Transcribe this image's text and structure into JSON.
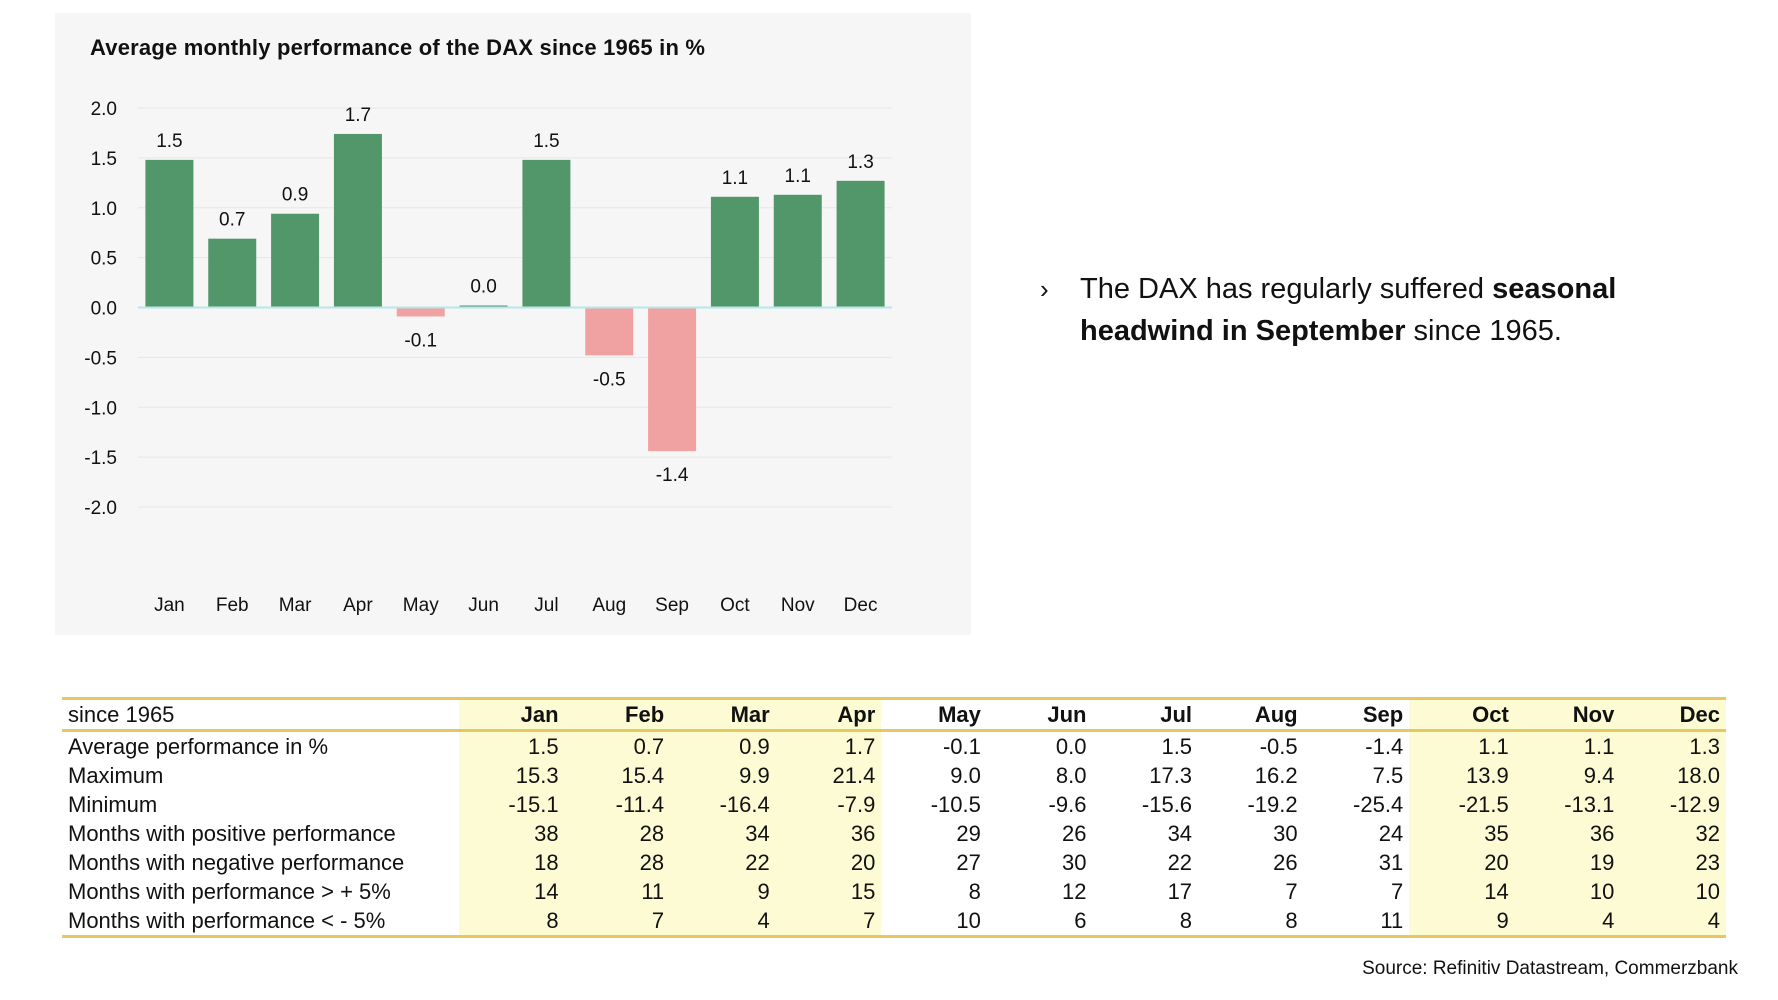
{
  "chart_data": {
    "type": "bar",
    "title": "Average monthly performance of the DAX since 1965 in %",
    "categories": [
      "Jan",
      "Feb",
      "Mar",
      "Apr",
      "May",
      "Jun",
      "Jul",
      "Aug",
      "Sep",
      "Oct",
      "Nov",
      "Dec"
    ],
    "values": [
      1.48,
      0.69,
      0.94,
      1.74,
      -0.09,
      0.02,
      1.48,
      -0.48,
      -1.44,
      1.11,
      1.13,
      1.27
    ],
    "data_labels": [
      "1.5",
      "0.7",
      "0.9",
      "1.7",
      "-0.1",
      "0.0",
      "1.5",
      "-0.5",
      "-1.4",
      "1.1",
      "1.1",
      "1.3"
    ],
    "yticks": [
      "2.0",
      "1.5",
      "1.0",
      "0.5",
      "0.0",
      "-0.5",
      "-1.0",
      "-1.5",
      "-2.0"
    ],
    "ylim": [
      -2.0,
      2.0
    ],
    "grid": true,
    "colors": {
      "positive": "#52976a",
      "negative": "#f0a1a1",
      "zero_line": "#b8e6ec",
      "grid": "#e6e6e6"
    }
  },
  "bullet": {
    "marker": "›",
    "text_before": "The DAX has regularly suffered ",
    "text_bold": "seasonal headwind in September",
    "text_after": " since 1965."
  },
  "table": {
    "header": "since 1965",
    "months": [
      "Jan",
      "Feb",
      "Mar",
      "Apr",
      "May",
      "Jun",
      "Jul",
      "Aug",
      "Sep",
      "Oct",
      "Nov",
      "Dec"
    ],
    "highlight_months": [
      "Jan",
      "Feb",
      "Mar",
      "Apr",
      "Oct",
      "Nov",
      "Dec"
    ],
    "rows": [
      {
        "label": "Average performance in %",
        "values": [
          "1.5",
          "0.7",
          "0.9",
          "1.7",
          "-0.1",
          "0.0",
          "1.5",
          "-0.5",
          "-1.4",
          "1.1",
          "1.1",
          "1.3"
        ]
      },
      {
        "label": "Maximum",
        "values": [
          "15.3",
          "15.4",
          "9.9",
          "21.4",
          "9.0",
          "8.0",
          "17.3",
          "16.2",
          "7.5",
          "13.9",
          "9.4",
          "18.0"
        ]
      },
      {
        "label": "Minimum",
        "values": [
          "-15.1",
          "-11.4",
          "-16.4",
          "-7.9",
          "-10.5",
          "-9.6",
          "-15.6",
          "-19.2",
          "-25.4",
          "-21.5",
          "-13.1",
          "-12.9"
        ]
      },
      {
        "label": "Months with positive performance",
        "values": [
          "38",
          "28",
          "34",
          "36",
          "29",
          "26",
          "34",
          "30",
          "24",
          "35",
          "36",
          "32"
        ]
      },
      {
        "label": "Months with negative performance",
        "values": [
          "18",
          "28",
          "22",
          "20",
          "27",
          "30",
          "22",
          "26",
          "31",
          "20",
          "19",
          "23"
        ]
      },
      {
        "label": "Months with performance > + 5%",
        "values": [
          "14",
          "11",
          "9",
          "15",
          "8",
          "12",
          "17",
          "7",
          "7",
          "14",
          "10",
          "10"
        ]
      },
      {
        "label": "Months with performance < - 5%",
        "values": [
          "8",
          "7",
          "4",
          "7",
          "10",
          "6",
          "8",
          "8",
          "11",
          "9",
          "4",
          "4"
        ]
      }
    ]
  },
  "source": "Source: Refinitiv Datastream, Commerzbank"
}
